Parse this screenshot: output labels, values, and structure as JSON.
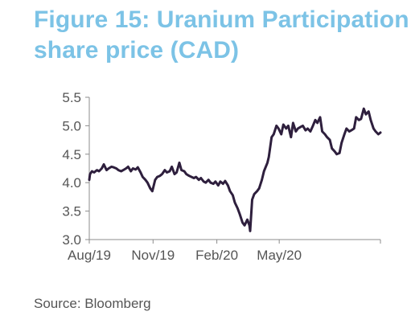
{
  "title_line1": "Figure 15: Uranium Participation",
  "title_line2": "share price (CAD)",
  "source": "Source: Bloomberg",
  "colors": {
    "title": "#7cc3e6",
    "line": "#2e1f3d",
    "axis": "#8c8c8c",
    "text": "#555555"
  },
  "chart_data": {
    "type": "line",
    "title": "Figure 15: Uranium Participation share price (CAD)",
    "xlabel": "",
    "ylabel": "",
    "ylim": [
      3.0,
      5.5
    ],
    "yticks": [
      3.0,
      3.5,
      4.0,
      4.5,
      5.0,
      5.5
    ],
    "ytick_labels": [
      "3.0",
      "3.5",
      "4.0",
      "4.5",
      "5.0",
      "5.5"
    ],
    "xlim": [
      "2019-08-01",
      "2020-09-24"
    ],
    "xticks": [
      "2019-08-01",
      "2019-11-01",
      "2020-02-01",
      "2020-05-01"
    ],
    "xtick_labels": [
      "Aug/19",
      "Nov/19",
      "Feb/20",
      "May/20"
    ],
    "grid": false,
    "legend": "none",
    "series": [
      {
        "name": "",
        "x": [
          "2019-08-01",
          "2019-08-02",
          "2019-08-05",
          "2019-08-08",
          "2019-08-12",
          "2019-08-15",
          "2019-08-19",
          "2019-08-22",
          "2019-08-26",
          "2019-08-29",
          "2019-09-02",
          "2019-09-05",
          "2019-09-09",
          "2019-09-12",
          "2019-09-16",
          "2019-09-19",
          "2019-09-23",
          "2019-09-26",
          "2019-09-30",
          "2019-10-03",
          "2019-10-07",
          "2019-10-10",
          "2019-10-14",
          "2019-10-17",
          "2019-10-21",
          "2019-10-24",
          "2019-10-28",
          "2019-10-31",
          "2019-11-04",
          "2019-11-07",
          "2019-11-11",
          "2019-11-14",
          "2019-11-18",
          "2019-11-21",
          "2019-11-25",
          "2019-11-28",
          "2019-12-02",
          "2019-12-05",
          "2019-12-09",
          "2019-12-12",
          "2019-12-16",
          "2019-12-19",
          "2019-12-23",
          "2019-12-30",
          "2020-01-02",
          "2020-01-06",
          "2020-01-09",
          "2020-01-13",
          "2020-01-16",
          "2020-01-20",
          "2020-01-23",
          "2020-01-27",
          "2020-01-30",
          "2020-02-03",
          "2020-02-06",
          "2020-02-10",
          "2020-02-13",
          "2020-02-17",
          "2020-02-20",
          "2020-02-24",
          "2020-02-27",
          "2020-03-02",
          "2020-03-05",
          "2020-03-09",
          "2020-03-12",
          "2020-03-16",
          "2020-03-19",
          "2020-03-20",
          "2020-03-23",
          "2020-03-26",
          "2020-03-30",
          "2020-04-02",
          "2020-04-06",
          "2020-04-09",
          "2020-04-14",
          "2020-04-16",
          "2020-04-20",
          "2020-04-23",
          "2020-04-27",
          "2020-04-30",
          "2020-05-04",
          "2020-05-07",
          "2020-05-11",
          "2020-05-14",
          "2020-05-18",
          "2020-05-21",
          "2020-05-25",
          "2020-05-28",
          "2020-06-01",
          "2020-06-04",
          "2020-06-08",
          "2020-06-11",
          "2020-06-15",
          "2020-06-18",
          "2020-06-22",
          "2020-06-25",
          "2020-06-29",
          "2020-07-02",
          "2020-07-06",
          "2020-07-09",
          "2020-07-13",
          "2020-07-16",
          "2020-07-20",
          "2020-07-23",
          "2020-07-27",
          "2020-07-30",
          "2020-08-03",
          "2020-08-06",
          "2020-08-10",
          "2020-08-13",
          "2020-08-17",
          "2020-08-20",
          "2020-08-24",
          "2020-08-27",
          "2020-08-31",
          "2020-09-03",
          "2020-09-07",
          "2020-09-10",
          "2020-09-14",
          "2020-09-17",
          "2020-09-21",
          "2020-09-24"
        ],
        "values": [
          4.05,
          4.15,
          4.2,
          4.18,
          4.22,
          4.2,
          4.25,
          4.32,
          4.22,
          4.25,
          4.28,
          4.27,
          4.25,
          4.22,
          4.2,
          4.22,
          4.25,
          4.28,
          4.2,
          4.25,
          4.23,
          4.27,
          4.18,
          4.1,
          4.05,
          4.0,
          3.9,
          3.85,
          4.05,
          4.1,
          4.12,
          4.15,
          4.22,
          4.18,
          4.2,
          4.28,
          4.15,
          4.18,
          4.35,
          4.22,
          4.2,
          4.15,
          4.12,
          4.08,
          4.1,
          4.05,
          4.08,
          4.02,
          4.0,
          4.05,
          4.0,
          3.98,
          4.02,
          3.95,
          4.02,
          3.98,
          4.03,
          3.95,
          3.85,
          3.78,
          3.65,
          3.55,
          3.45,
          3.3,
          3.25,
          3.35,
          3.25,
          3.15,
          3.7,
          3.8,
          3.85,
          3.9,
          4.05,
          4.2,
          4.35,
          4.45,
          4.8,
          4.85,
          5.0,
          4.95,
          4.85,
          5.02,
          4.95,
          5.0,
          4.8,
          5.05,
          4.9,
          4.95,
          4.98,
          5.0,
          4.92,
          4.95,
          4.9,
          4.98,
          5.1,
          5.05,
          5.15,
          4.9,
          4.85,
          4.8,
          4.75,
          4.6,
          4.55,
          4.5,
          4.52,
          4.7,
          4.85,
          4.95,
          4.9,
          4.92,
          4.95,
          5.15,
          5.1,
          5.12,
          5.3,
          5.2,
          5.25,
          5.1,
          4.95,
          4.9,
          4.85,
          4.88
        ]
      }
    ]
  }
}
